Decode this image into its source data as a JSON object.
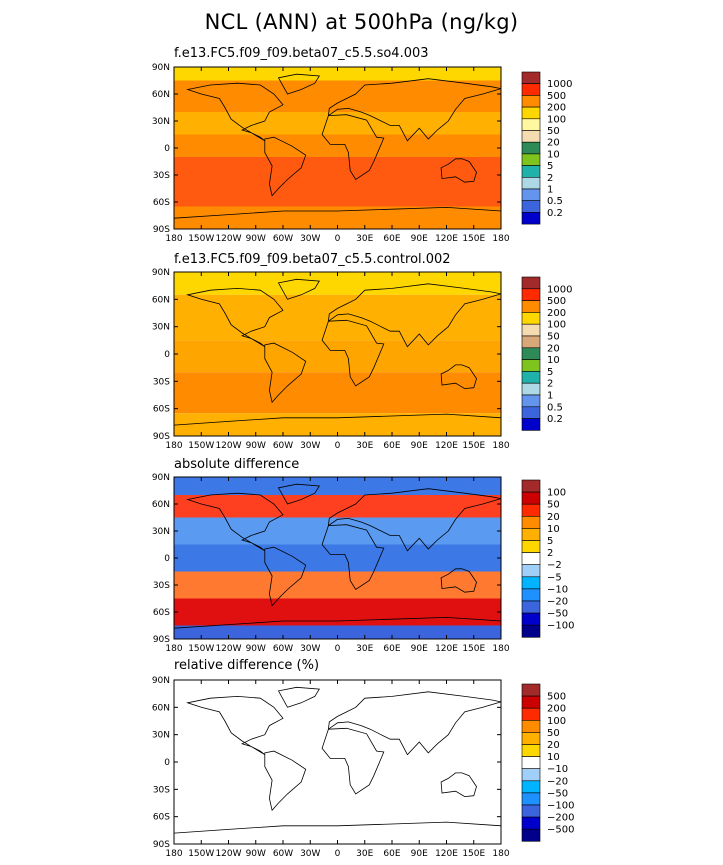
{
  "title": "NCL (ANN) at 500hPa (ng/kg)",
  "chart_data": [
    {
      "type": "heatmap",
      "title": "f.e13.FC5.f09_f09.beta07_c5.5.so4.003",
      "lat_ticks": [
        "90N",
        "60N",
        "30N",
        "0",
        "30S",
        "60S",
        "90S"
      ],
      "lon_ticks": [
        "180",
        "150W",
        "120W",
        "90W",
        "60W",
        "30W",
        "0",
        "30E",
        "60E",
        "90E",
        "120E",
        "150E",
        "180"
      ],
      "xlim": [
        -180,
        180
      ],
      "ylim": [
        -90,
        90
      ],
      "colorbar": {
        "levels": [
          "1000",
          "500",
          "200",
          "100",
          "50",
          "20",
          "10",
          "5",
          "2",
          "1",
          "0.5",
          "0.2"
        ],
        "colors": [
          "#a32a2a",
          "#ff2a00",
          "#ff8c00",
          "#ffd700",
          "#fff8a0",
          "#f4dcb0",
          "#2e8b57",
          "#7fc31f",
          "#20b2aa",
          "#add8e6",
          "#6495ed",
          "#3c64dc",
          "#0000cd"
        ]
      },
      "bands": [
        {
          "lat_from": 90,
          "lat_to": 75,
          "color": "#ffd700"
        },
        {
          "lat_from": 75,
          "lat_to": 40,
          "color": "#ff8c00"
        },
        {
          "lat_from": 40,
          "lat_to": 15,
          "color": "#ffb000"
        },
        {
          "lat_from": 15,
          "lat_to": -10,
          "color": "#ff8c00"
        },
        {
          "lat_from": -10,
          "lat_to": -65,
          "color": "#ff5a10"
        },
        {
          "lat_from": -65,
          "lat_to": -90,
          "color": "#ff8c00"
        }
      ]
    },
    {
      "type": "heatmap",
      "title": "f.e13.FC5.f09_f09.beta07_c5.5.control.002",
      "lat_ticks": [
        "90N",
        "60N",
        "30N",
        "0",
        "30S",
        "60S",
        "90S"
      ],
      "lon_ticks": [
        "180",
        "150W",
        "120W",
        "90W",
        "60W",
        "30W",
        "0",
        "30E",
        "60E",
        "90E",
        "120E",
        "150E",
        "180"
      ],
      "xlim": [
        -180,
        180
      ],
      "ylim": [
        -90,
        90
      ],
      "colorbar": {
        "levels": [
          "1000",
          "500",
          "200",
          "100",
          "50",
          "20",
          "10",
          "5",
          "2",
          "1",
          "0.5",
          "0.2"
        ],
        "colors": [
          "#a32a2a",
          "#ff2a00",
          "#ff8c00",
          "#ffd700",
          "#f4dcb0",
          "#d9a87a",
          "#2e8b57",
          "#7fc31f",
          "#20b2aa",
          "#add8e6",
          "#6495ed",
          "#3c64dc",
          "#0000cd"
        ]
      },
      "bands": [
        {
          "lat_from": 90,
          "lat_to": 65,
          "color": "#ffd700"
        },
        {
          "lat_from": 65,
          "lat_to": 15,
          "color": "#ffb000"
        },
        {
          "lat_from": 15,
          "lat_to": -20,
          "color": "#ffa500"
        },
        {
          "lat_from": -20,
          "lat_to": -65,
          "color": "#ff8c00"
        },
        {
          "lat_from": -65,
          "lat_to": -90,
          "color": "#ffb000"
        }
      ]
    },
    {
      "type": "heatmap",
      "title": "absolute difference",
      "lat_ticks": [
        "90N",
        "60N",
        "30N",
        "0",
        "30S",
        "60S",
        "90S"
      ],
      "lon_ticks": [
        "180",
        "150W",
        "120W",
        "90W",
        "60W",
        "30W",
        "0",
        "30E",
        "60E",
        "90E",
        "120E",
        "150E",
        "180"
      ],
      "xlim": [
        -180,
        180
      ],
      "ylim": [
        -90,
        90
      ],
      "colorbar": {
        "levels": [
          "100",
          "50",
          "20",
          "10",
          "5",
          "2",
          "−2",
          "−5",
          "−10",
          "−20",
          "−50",
          "−100"
        ],
        "colors": [
          "#a32a2a",
          "#cc0000",
          "#ff2a00",
          "#ff8c00",
          "#ffb000",
          "#ffd700",
          "#ffffff",
          "#a0d0f8",
          "#00b4ff",
          "#1e90ff",
          "#3c64dc",
          "#0000cd",
          "#00008b"
        ]
      },
      "bands": [
        {
          "lat_from": 90,
          "lat_to": 70,
          "color": "#3c78e6"
        },
        {
          "lat_from": 70,
          "lat_to": 45,
          "color": "#ff4020"
        },
        {
          "lat_from": 45,
          "lat_to": 15,
          "color": "#5a9af0"
        },
        {
          "lat_from": 15,
          "lat_to": -15,
          "color": "#3c78e6"
        },
        {
          "lat_from": -15,
          "lat_to": -45,
          "color": "#ff7a30"
        },
        {
          "lat_from": -45,
          "lat_to": -75,
          "color": "#e01010"
        },
        {
          "lat_from": -75,
          "lat_to": -90,
          "color": "#3c64dc"
        }
      ]
    },
    {
      "type": "heatmap",
      "title": "relative difference (%)",
      "lat_ticks": [
        "90N",
        "60N",
        "30N",
        "0",
        "30S",
        "60S",
        "90S"
      ],
      "lon_ticks": [
        "180",
        "150W",
        "120W",
        "90W",
        "60W",
        "30W",
        "0",
        "30E",
        "60E",
        "90E",
        "120E",
        "150E",
        "180"
      ],
      "xlim": [
        -180,
        180
      ],
      "ylim": [
        -90,
        90
      ],
      "colorbar": {
        "levels": [
          "500",
          "200",
          "100",
          "50",
          "20",
          "10",
          "−10",
          "−20",
          "−50",
          "−100",
          "−200",
          "−500"
        ],
        "colors": [
          "#a32a2a",
          "#cc0000",
          "#ff2a00",
          "#ff8c00",
          "#ffb000",
          "#ffd700",
          "#ffffff",
          "#a0d0f8",
          "#00b4ff",
          "#1e90ff",
          "#3c64dc",
          "#0000cd",
          "#00008b"
        ]
      },
      "bands": [
        {
          "lat_from": 90,
          "lat_to": -90,
          "color": "#ffffff"
        }
      ]
    }
  ]
}
